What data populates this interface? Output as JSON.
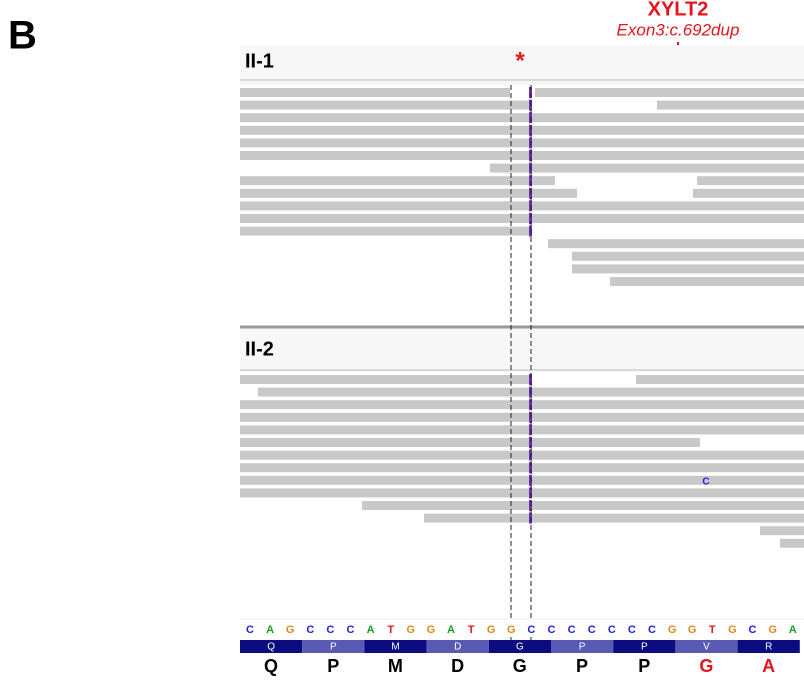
{
  "panel_label": "B",
  "gene": "XYLT2",
  "variant": "Exon3:c.692dup",
  "marker": "*",
  "tracks": [
    {
      "label": "II-1"
    },
    {
      "label": "II-2",
      "mismatch": "C"
    }
  ],
  "sequence": [
    "C",
    "A",
    "G",
    "C",
    "C",
    "C",
    "A",
    "T",
    "G",
    "G",
    "A",
    "T",
    "G",
    "G",
    "C",
    "C",
    "C",
    "C",
    "C",
    "C",
    "C",
    "G",
    "G",
    "T",
    "G",
    "C",
    "G",
    "A"
  ],
  "translation": [
    "Q",
    "P",
    "M",
    "D",
    "G",
    "P",
    "P",
    "V",
    "R"
  ],
  "protein": [
    {
      "letter": "Q",
      "color": "#000000"
    },
    {
      "letter": "P",
      "color": "#000000"
    },
    {
      "letter": "M",
      "color": "#000000"
    },
    {
      "letter": "D",
      "color": "#000000"
    },
    {
      "letter": "G",
      "color": "#000000"
    },
    {
      "letter": "P",
      "color": "#000000"
    },
    {
      "letter": "P",
      "color": "#000000"
    },
    {
      "letter": "G",
      "color": "#e8141c"
    },
    {
      "letter": "A",
      "color": "#e8141c"
    }
  ]
}
